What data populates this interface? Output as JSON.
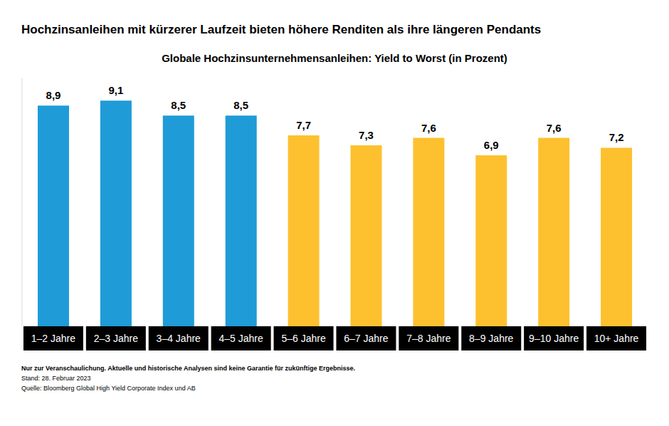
{
  "chart_data": {
    "type": "bar",
    "title": "Hochzinsanleihen mit kürzerer Laufzeit bieten höhere Renditen als ihre längeren Pendants",
    "subtitle": "Globale Hochzinsunternehmensanleihen: Yield to Worst (in Prozent)",
    "categories": [
      "1–2 Jahre",
      "2–3 Jahre",
      "3–4 Jahre",
      "4–5 Jahre",
      "5–6 Jahre",
      "6–7 Jahre",
      "7–8 Jahre",
      "8–9 Jahre",
      "9–10 Jahre",
      "10+ Jahre"
    ],
    "values": [
      8.9,
      9.1,
      8.5,
      8.5,
      7.7,
      7.3,
      7.6,
      6.9,
      7.6,
      7.2
    ],
    "value_labels": [
      "8,9",
      "9,1",
      "8,5",
      "8,5",
      "7,7",
      "7,3",
      "7,6",
      "6,9",
      "7,6",
      "7,2"
    ],
    "colors": [
      "#1f9bd7",
      "#1f9bd7",
      "#1f9bd7",
      "#1f9bd7",
      "#fdc12f",
      "#fdc12f",
      "#fdc12f",
      "#fdc12f",
      "#fdc12f",
      "#fdc12f"
    ],
    "ylim": [
      0,
      10
    ],
    "yticks": [],
    "tick_labels": false,
    "data_labels": true,
    "grid": false,
    "annotations": [
      "Nur zur Veranschaulichung. Aktuelle und historische Analysen sind keine Garantie für zukünftige Ergebnisse.",
      "Stand: 28. Februar 2023",
      "Quelle: Bloomberg Global High Yield Corporate Index und AB"
    ]
  }
}
